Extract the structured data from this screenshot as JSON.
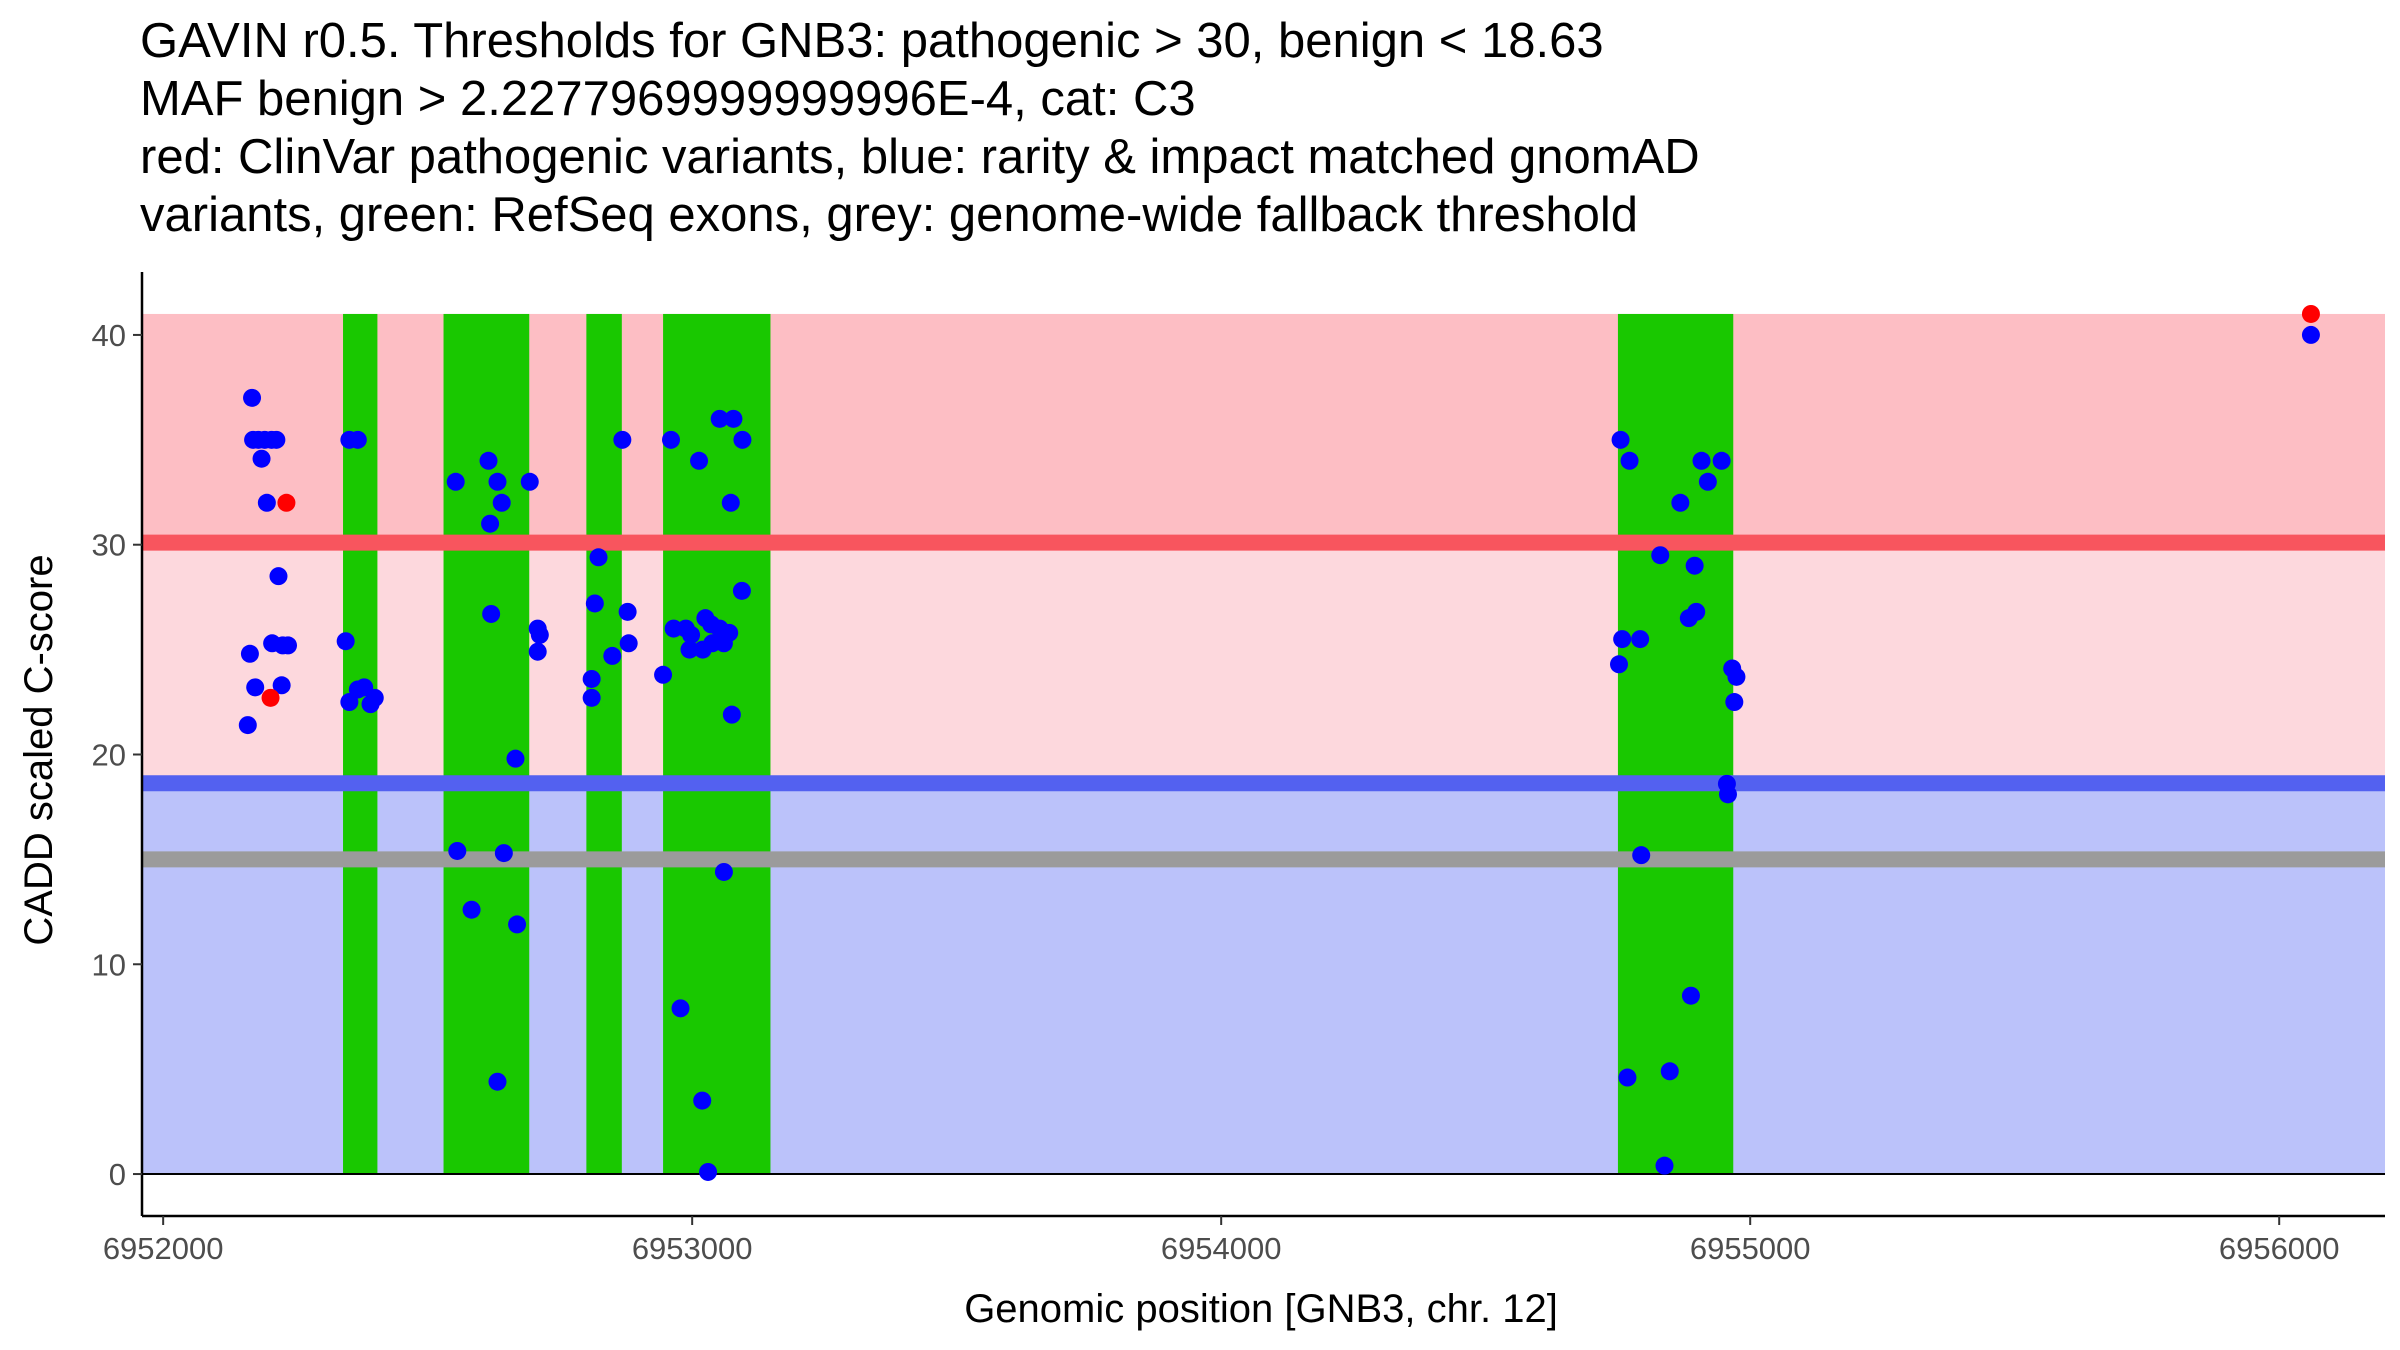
{
  "title_lines": [
    "GAVIN r0.5. Thresholds for GNB3: pathogenic > 30, benign < 18.63",
    "MAF benign > 2.2277969999999996E-4, cat: C3",
    "red: ClinVar pathogenic variants, blue: rarity & impact matched gnomAD",
    "variants, green: RefSeq exons, grey: genome-wide fallback threshold"
  ],
  "colors": {
    "pathogenic_band": "#fdbec4",
    "grey_zone_band": "#fdd8dd",
    "benign_band": "#bbc2fa",
    "pathogenic_line": "#f8555e",
    "benign_line": "#5361f0",
    "fallback_line": "#9b9b9b",
    "exon": "#19c800",
    "gnomad_point": "#0000ff",
    "clinvar_point": "#ff0000",
    "axis": "#000000"
  },
  "chart_data": {
    "type": "scatter",
    "xlabel": "Genomic position [GNB3, chr. 12]",
    "ylabel": "CADD scaled C-score",
    "xlim": [
      6951960,
      6956200
    ],
    "ylim": [
      -2,
      43
    ],
    "x_ticks": [
      6952000,
      6953000,
      6954000,
      6955000,
      6956000
    ],
    "x_tick_labels": [
      "6952000",
      "6953000",
      "6954000",
      "6955000",
      "6956000"
    ],
    "y_ticks": [
      0,
      10,
      20,
      30,
      40
    ],
    "y_tick_labels": [
      "0",
      "10",
      "20",
      "30",
      "40"
    ],
    "thresholds": {
      "pathogenic": 30.1,
      "benign": 18.63,
      "fallback": 15,
      "band_top": 41
    },
    "band_x_range": [
      6951960,
      6956200
    ],
    "exons": [
      [
        6952340,
        6952405
      ],
      [
        6952530,
        6952692
      ],
      [
        6952800,
        6952867
      ],
      [
        6952945,
        6953148
      ],
      [
        6954750,
        6954968
      ]
    ],
    "series": [
      {
        "name": "ClinVar pathogenic variants",
        "color_key": "clinvar_point",
        "points": [
          [
            6952233,
            32.0
          ],
          [
            6952203,
            22.7
          ],
          [
            6956060,
            41.0
          ]
        ]
      },
      {
        "name": "rarity & impact matched gnomAD variants",
        "color_key": "gnomad_point",
        "points": [
          [
            6952168,
            37.0
          ],
          [
            6952170,
            35.0
          ],
          [
            6952180,
            35.0
          ],
          [
            6952192,
            35.0
          ],
          [
            6952205,
            35.0
          ],
          [
            6952214,
            35.0
          ],
          [
            6952186,
            34.1
          ],
          [
            6952196,
            32.0
          ],
          [
            6952218,
            28.5
          ],
          [
            6952206,
            25.3
          ],
          [
            6952226,
            25.2
          ],
          [
            6952236,
            25.2
          ],
          [
            6952164,
            24.8
          ],
          [
            6952174,
            23.2
          ],
          [
            6952224,
            23.3
          ],
          [
            6952160,
            21.4
          ],
          [
            6952352,
            35.0
          ],
          [
            6952368,
            35.0
          ],
          [
            6952345,
            25.4
          ],
          [
            6952352,
            22.5
          ],
          [
            6952368,
            23.1
          ],
          [
            6952380,
            23.2
          ],
          [
            6952392,
            22.4
          ],
          [
            6952400,
            22.7
          ],
          [
            6952553,
            33.0
          ],
          [
            6952615,
            34.0
          ],
          [
            6952632,
            33.0
          ],
          [
            6952640,
            32.0
          ],
          [
            6952693,
            33.0
          ],
          [
            6952618,
            31.0
          ],
          [
            6952620,
            26.7
          ],
          [
            6952708,
            26.0
          ],
          [
            6952712,
            25.7
          ],
          [
            6952708,
            24.9
          ],
          [
            6952666,
            19.8
          ],
          [
            6952556,
            15.4
          ],
          [
            6952644,
            15.3
          ],
          [
            6952583,
            12.6
          ],
          [
            6952669,
            11.9
          ],
          [
            6952632,
            4.4
          ],
          [
            6952823,
            29.4
          ],
          [
            6952816,
            27.2
          ],
          [
            6952868,
            35.0
          ],
          [
            6952878,
            26.8
          ],
          [
            6952880,
            25.3
          ],
          [
            6952849,
            24.7
          ],
          [
            6952810,
            23.6
          ],
          [
            6952810,
            22.7
          ],
          [
            6952960,
            35.0
          ],
          [
            6953013,
            34.0
          ],
          [
            6953052,
            36.0
          ],
          [
            6953078,
            36.0
          ],
          [
            6953095,
            35.0
          ],
          [
            6953073,
            32.0
          ],
          [
            6953094,
            27.8
          ],
          [
            6952965,
            26.0
          ],
          [
            6952988,
            26.0
          ],
          [
            6952998,
            25.7
          ],
          [
            6953025,
            26.5
          ],
          [
            6953036,
            26.2
          ],
          [
            6953052,
            26.0
          ],
          [
            6953070,
            25.8
          ],
          [
            6953060,
            25.3
          ],
          [
            6953038,
            25.3
          ],
          [
            6953020,
            25.0
          ],
          [
            6952995,
            25.0
          ],
          [
            6952945,
            23.8
          ],
          [
            6953075,
            21.9
          ],
          [
            6953060,
            14.4
          ],
          [
            6952978,
            7.9
          ],
          [
            6953019,
            3.5
          ],
          [
            6953030,
            0.1
          ],
          [
            6954755,
            35.0
          ],
          [
            6954772,
            34.0
          ],
          [
            6954908,
            34.0
          ],
          [
            6954920,
            33.0
          ],
          [
            6954946,
            34.0
          ],
          [
            6954868,
            32.0
          ],
          [
            6954830,
            29.5
          ],
          [
            6954895,
            29.0
          ],
          [
            6954898,
            26.8
          ],
          [
            6954884,
            26.5
          ],
          [
            6954758,
            25.5
          ],
          [
            6954792,
            25.5
          ],
          [
            6954752,
            24.3
          ],
          [
            6954966,
            24.1
          ],
          [
            6954974,
            23.7
          ],
          [
            6954970,
            22.5
          ],
          [
            6954956,
            18.6
          ],
          [
            6954958,
            18.1
          ],
          [
            6954794,
            15.2
          ],
          [
            6954888,
            8.5
          ],
          [
            6954848,
            4.9
          ],
          [
            6954768,
            4.6
          ],
          [
            6954838,
            0.4
          ],
          [
            6956060,
            40.0
          ]
        ]
      }
    ]
  }
}
